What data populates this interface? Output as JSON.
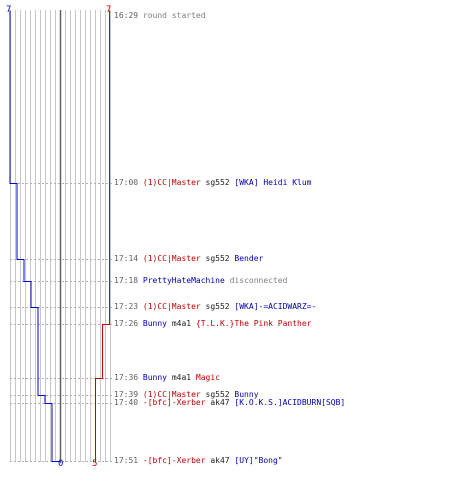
{
  "colors": {
    "team_blue": "#0000cc",
    "team_red": "#cc0000",
    "grid": "#c8c8c8",
    "center_line": "#606060",
    "dashed_guide": "#b0b0b0"
  },
  "scores": {
    "blue_start": "7",
    "red_start": "7",
    "blue_end": "0",
    "red_end": "5"
  },
  "events": [
    {
      "time": "16:29",
      "parts": [
        {
          "text": "round started",
          "color": "gray"
        }
      ]
    },
    {
      "time": "17:00",
      "parts": [
        {
          "text": "(1)CC|Master",
          "color": "red"
        },
        {
          "text": " sg552 ",
          "color": "black"
        },
        {
          "text": "[WKA] Heidi Klum",
          "color": "blue"
        }
      ]
    },
    {
      "time": "17:14",
      "parts": [
        {
          "text": "(1)CC|Master",
          "color": "red"
        },
        {
          "text": " sg552 ",
          "color": "black"
        },
        {
          "text": "Bender",
          "color": "blue"
        }
      ]
    },
    {
      "time": "17:18",
      "parts": [
        {
          "text": "PrettyHateMachine",
          "color": "blue"
        },
        {
          "text": " disconnected",
          "color": "gray"
        }
      ]
    },
    {
      "time": "17:23",
      "parts": [
        {
          "text": "(1)CC|Master",
          "color": "red"
        },
        {
          "text": " sg552 ",
          "color": "black"
        },
        {
          "text": "[WKA]-=ACIDWARZ=-",
          "color": "blue"
        }
      ]
    },
    {
      "time": "17:26",
      "parts": [
        {
          "text": "Bunny",
          "color": "blue"
        },
        {
          "text": " m4a1 ",
          "color": "black"
        },
        {
          "text": "{T.L.K.}The Pink Panther",
          "color": "red"
        }
      ]
    },
    {
      "time": "17:36",
      "parts": [
        {
          "text": "Bunny",
          "color": "blue"
        },
        {
          "text": " m4a1 ",
          "color": "black"
        },
        {
          "text": "Magic",
          "color": "red"
        }
      ]
    },
    {
      "time": "17:39",
      "parts": [
        {
          "text": "(1)CC|Master",
          "color": "red"
        },
        {
          "text": " sg552 ",
          "color": "black"
        },
        {
          "text": "Bunny",
          "color": "blue"
        }
      ]
    },
    {
      "time": "17:40",
      "parts": [
        {
          "text": "-[bfc]-Xerber",
          "color": "red"
        },
        {
          "text": " ak47 ",
          "color": "black"
        },
        {
          "text": "[K.O.K.S.]ACIDBURN[SQB]",
          "color": "blue"
        }
      ]
    },
    {
      "time": "17:51",
      "parts": [
        {
          "text": "-[bfc]-Xerber",
          "color": "red"
        },
        {
          "text": " ak47 ",
          "color": "black"
        },
        {
          "text": "[UY]\"Bong\"",
          "color": "blue"
        }
      ]
    }
  ]
}
